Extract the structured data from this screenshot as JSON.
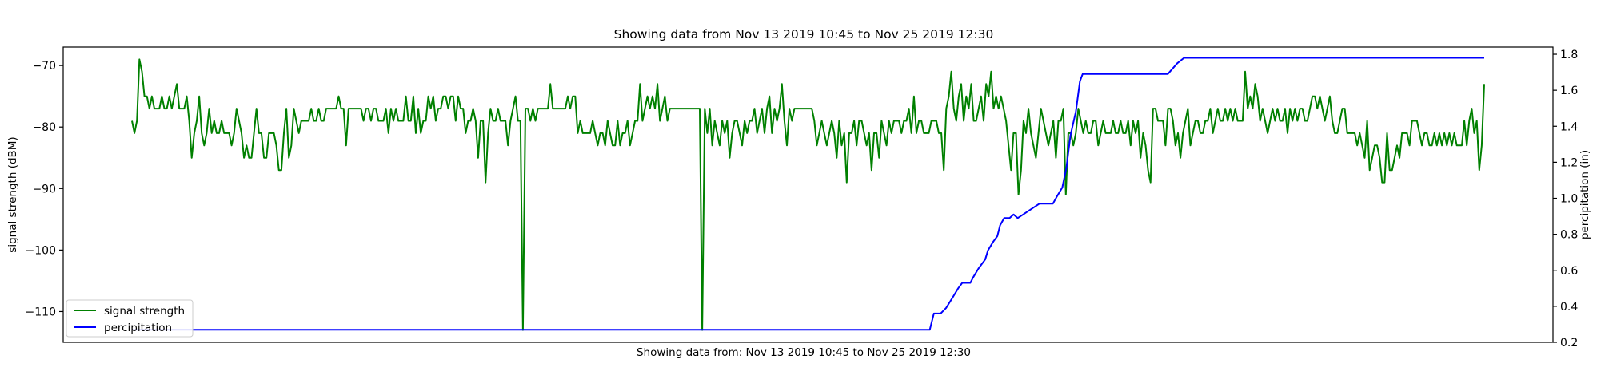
{
  "chart_data": {
    "type": "line",
    "title": "Showing data from Nov 13 2019 10:45 to Nov 25 2019 12:30",
    "xlabel": "Showing data from: Nov 13 2019 10:45 to Nov 25 2019 12:30",
    "ylabel_left": "signal strength (dBM)",
    "ylabel_right": "percipitation (in)",
    "x_range": [
      "Nov 13 2019 10:45",
      "Nov 25 2019 12:30"
    ],
    "x_ticks_shown": false,
    "ylim_left": [
      -115,
      -67
    ],
    "ylim_right": [
      0.2,
      1.84
    ],
    "yticks_left": [
      -70,
      -80,
      -90,
      -100,
      -110
    ],
    "yticks_right": [
      0.2,
      0.4,
      0.6,
      0.8,
      1.0,
      1.2,
      1.4,
      1.6,
      1.8
    ],
    "grid": false,
    "legend_position": "lower-left",
    "legend": [
      "signal strength",
      "percipitation"
    ],
    "series": [
      {
        "name": "signal strength",
        "axis": "left",
        "color": "#008000",
        "x_note": "evenly spaced readings across the date range",
        "values": [
          -79,
          -81,
          -79,
          -69,
          -71,
          -75,
          -75,
          -77,
          -75,
          -77,
          -77,
          -77,
          -75,
          -77,
          -77,
          -75,
          -77,
          -75,
          -73,
          -77,
          -77,
          -77,
          -75,
          -79,
          -85,
          -81,
          -79,
          -75,
          -81,
          -83,
          -81,
          -77,
          -81,
          -79,
          -81,
          -81,
          -79,
          -81,
          -81,
          -81,
          -83,
          -81,
          -77,
          -79,
          -81,
          -85,
          -83,
          -85,
          -85,
          -81,
          -77,
          -81,
          -81,
          -85,
          -85,
          -81,
          -81,
          -81,
          -83,
          -87,
          -87,
          -81,
          -77,
          -85,
          -83,
          -77,
          -79,
          -81,
          -79,
          -79,
          -79,
          -79,
          -77,
          -79,
          -79,
          -77,
          -79,
          -79,
          -77,
          -77,
          -77,
          -77,
          -77,
          -75,
          -77,
          -77,
          -83,
          -77,
          -77,
          -77,
          -77,
          -77,
          -77,
          -79,
          -77,
          -77,
          -79,
          -77,
          -77,
          -79,
          -79,
          -79,
          -77,
          -81,
          -77,
          -79,
          -77,
          -79,
          -79,
          -79,
          -75,
          -79,
          -79,
          -75,
          -81,
          -77,
          -81,
          -79,
          -79,
          -75,
          -77,
          -75,
          -79,
          -77,
          -77,
          -75,
          -75,
          -77,
          -75,
          -75,
          -79,
          -75,
          -77,
          -77,
          -81,
          -79,
          -79,
          -77,
          -79,
          -85,
          -79,
          -79,
          -89,
          -81,
          -77,
          -79,
          -79,
          -77,
          -79,
          -79,
          -79,
          -83,
          -79,
          -77,
          -75,
          -79,
          -79,
          -113,
          -77,
          -77,
          -79,
          -77,
          -79,
          -77,
          -77,
          -77,
          -77,
          -77,
          -73,
          -77,
          -77,
          -77,
          -77,
          -77,
          -77,
          -75,
          -77,
          -75,
          -75,
          -81,
          -79,
          -81,
          -81,
          -81,
          -81,
          -79,
          -81,
          -83,
          -81,
          -81,
          -83,
          -79,
          -81,
          -83,
          -83,
          -79,
          -83,
          -81,
          -81,
          -79,
          -83,
          -81,
          -79,
          -79,
          -73,
          -79,
          -77,
          -75,
          -77,
          -75,
          -77,
          -73,
          -79,
          -77,
          -75,
          -79,
          -77,
          -77,
          -77,
          -77,
          -77,
          -77,
          -77,
          -77,
          -77,
          -77,
          -77,
          -77,
          -77,
          -113,
          -77,
          -81,
          -77,
          -83,
          -79,
          -81,
          -83,
          -79,
          -81,
          -79,
          -85,
          -81,
          -79,
          -79,
          -81,
          -83,
          -79,
          -81,
          -79,
          -79,
          -77,
          -81,
          -79,
          -77,
          -81,
          -77,
          -75,
          -81,
          -77,
          -79,
          -77,
          -73,
          -79,
          -83,
          -77,
          -79,
          -77,
          -77,
          -77,
          -77,
          -77,
          -77,
          -77,
          -77,
          -79,
          -83,
          -81,
          -79,
          -81,
          -83,
          -81,
          -79,
          -81,
          -85,
          -79,
          -83,
          -81,
          -89,
          -81,
          -81,
          -79,
          -83,
          -79,
          -79,
          -81,
          -83,
          -81,
          -87,
          -81,
          -81,
          -85,
          -79,
          -81,
          -83,
          -79,
          -81,
          -79,
          -79,
          -79,
          -81,
          -79,
          -79,
          -77,
          -81,
          -75,
          -81,
          -79,
          -79,
          -81,
          -81,
          -81,
          -79,
          -79,
          -79,
          -81,
          -81,
          -87,
          -77,
          -75,
          -71,
          -77,
          -79,
          -75,
          -73,
          -79,
          -75,
          -77,
          -73,
          -79,
          -79,
          -77,
          -75,
          -79,
          -73,
          -75,
          -71,
          -77,
          -75,
          -77,
          -75,
          -77,
          -79,
          -83,
          -87,
          -81,
          -81,
          -91,
          -87,
          -79,
          -81,
          -77,
          -81,
          -83,
          -85,
          -81,
          -77,
          -79,
          -81,
          -83,
          -81,
          -79,
          -85,
          -79,
          -79,
          -77,
          -91,
          -81,
          -81,
          -83,
          -81,
          -77,
          -79,
          -81,
          -79,
          -81,
          -81,
          -79,
          -79,
          -83,
          -81,
          -79,
          -81,
          -81,
          -81,
          -79,
          -81,
          -81,
          -79,
          -81,
          -81,
          -79,
          -83,
          -79,
          -81,
          -79,
          -85,
          -81,
          -83,
          -87,
          -89,
          -77,
          -77,
          -79,
          -79,
          -79,
          -83,
          -77,
          -77,
          -79,
          -83,
          -81,
          -85,
          -81,
          -79,
          -77,
          -83,
          -81,
          -79,
          -79,
          -81,
          -81,
          -79,
          -79,
          -77,
          -81,
          -79,
          -77,
          -79,
          -79,
          -77,
          -79,
          -77,
          -79,
          -77,
          -79,
          -79,
          -79,
          -71,
          -77,
          -75,
          -77,
          -73,
          -75,
          -79,
          -77,
          -79,
          -81,
          -79,
          -77,
          -79,
          -77,
          -79,
          -79,
          -77,
          -81,
          -77,
          -79,
          -77,
          -79,
          -77,
          -77,
          -79,
          -79,
          -77,
          -75,
          -75,
          -77,
          -75,
          -77,
          -79,
          -77,
          -75,
          -79,
          -81,
          -81,
          -79,
          -77,
          -77,
          -81,
          -81,
          -81,
          -81,
          -83,
          -81,
          -83,
          -85,
          -79,
          -87,
          -85,
          -83,
          -83,
          -85,
          -89,
          -89,
          -81,
          -87,
          -87,
          -85,
          -83,
          -85,
          -81,
          -81,
          -81,
          -83,
          -79,
          -79,
          -79,
          -81,
          -83,
          -81,
          -81,
          -83,
          -83,
          -81,
          -83,
          -81,
          -83,
          -81,
          -83,
          -81,
          -83,
          -81,
          -83,
          -83,
          -83,
          -79,
          -83,
          -79,
          -77,
          -81,
          -79,
          -87,
          -83,
          -73
        ]
      },
      {
        "name": "percipitation",
        "axis": "right",
        "color": "#0000ff",
        "x_note": "cumulative precipitation, step-wise rises between Nov 19 and Nov 22",
        "points": [
          [
            0,
            0.27
          ],
          [
            0.59,
            0.27
          ],
          [
            0.593,
            0.36
          ],
          [
            0.598,
            0.36
          ],
          [
            0.602,
            0.39
          ],
          [
            0.607,
            0.45
          ],
          [
            0.611,
            0.5
          ],
          [
            0.614,
            0.53
          ],
          [
            0.62,
            0.53
          ],
          [
            0.622,
            0.56
          ],
          [
            0.626,
            0.61
          ],
          [
            0.628,
            0.63
          ],
          [
            0.631,
            0.66
          ],
          [
            0.633,
            0.71
          ],
          [
            0.637,
            0.76
          ],
          [
            0.64,
            0.79
          ],
          [
            0.642,
            0.85
          ],
          [
            0.645,
            0.89
          ],
          [
            0.649,
            0.89
          ],
          [
            0.652,
            0.91
          ],
          [
            0.655,
            0.89
          ],
          [
            0.659,
            0.91
          ],
          [
            0.663,
            0.93
          ],
          [
            0.667,
            0.95
          ],
          [
            0.671,
            0.97
          ],
          [
            0.681,
            0.97
          ],
          [
            0.684,
            1.01
          ],
          [
            0.688,
            1.06
          ],
          [
            0.691,
            1.17
          ],
          [
            0.694,
            1.35
          ],
          [
            0.698,
            1.48
          ],
          [
            0.701,
            1.65
          ],
          [
            0.703,
            1.69
          ],
          [
            0.766,
            1.69
          ],
          [
            0.773,
            1.75
          ],
          [
            0.778,
            1.78
          ],
          [
            1.0,
            1.78
          ]
        ]
      }
    ]
  },
  "legend": {
    "items": [
      {
        "label": "signal strength",
        "color": "#008000"
      },
      {
        "label": "percipitation",
        "color": "#0000ff"
      }
    ]
  }
}
